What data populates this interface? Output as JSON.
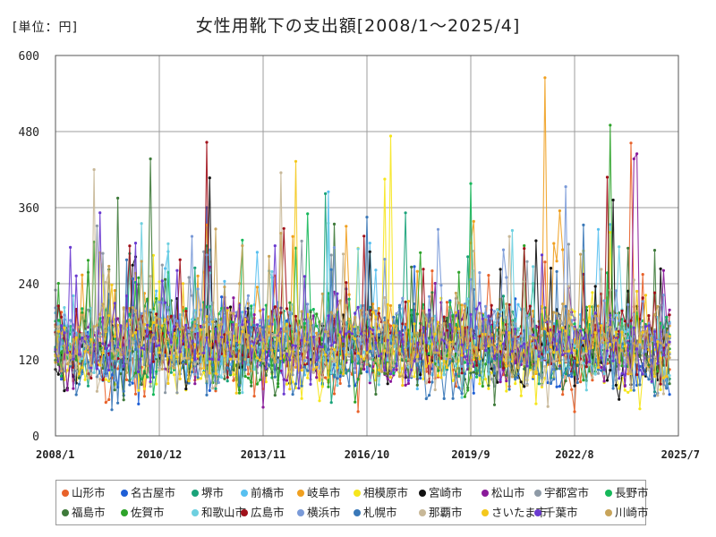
{
  "header": {
    "unit": "[単位：円]",
    "title": "女性用靴下の支出額[2008/1～2025/4]"
  },
  "chart_data": {
    "type": "line",
    "title": "女性用靴下の支出額[2008/1～2025/4]",
    "unit": "[単位：円]",
    "ylim": [
      0,
      600
    ],
    "yticks": [
      0,
      120,
      240,
      360,
      480,
      600
    ],
    "xrange": [
      "2008/1",
      "2025/7"
    ],
    "xticks": [
      "2008/1",
      "2010/12",
      "2013/11",
      "2016/10",
      "2019/9",
      "2022/8",
      "2025/7"
    ],
    "grid": true,
    "legend_position": "bottom",
    "series": [
      {
        "name": "山形市",
        "color": "#e8622a",
        "spikes": [
          [
            "2024/3",
            462
          ]
        ]
      },
      {
        "name": "名古屋市",
        "color": "#1f5fd6",
        "spikes": [
          [
            "2012/4",
            360
          ]
        ]
      },
      {
        "name": "堺市",
        "color": "#1aa37a",
        "spikes": [
          [
            "2015/8",
            382
          ]
        ]
      },
      {
        "name": "前橋市",
        "color": "#58c0f0",
        "spikes": [
          [
            "2015/9",
            385
          ]
        ]
      },
      {
        "name": "岐阜市",
        "color": "#f0a020",
        "spikes": [
          [
            "2021/10",
            565
          ],
          [
            "2022/3",
            355
          ]
        ]
      },
      {
        "name": "相模原市",
        "color": "#f6e61c",
        "spikes": [
          [
            "2017/6",
            473
          ],
          [
            "2017/4",
            405
          ]
        ]
      },
      {
        "name": "宮崎市",
        "color": "#111111",
        "spikes": [
          [
            "2012/5",
            407
          ],
          [
            "2023/9",
            372
          ]
        ]
      },
      {
        "name": "松山市",
        "color": "#8a1a9a",
        "spikes": [
          [
            "2024/5",
            445
          ],
          [
            "2024/4",
            437
          ]
        ]
      },
      {
        "name": "宇都宮市",
        "color": "#8e9aa6",
        "spikes": [
          [
            "2021/4",
            275
          ]
        ]
      },
      {
        "name": "長野市",
        "color": "#16b85a",
        "spikes": [
          [
            "2019/9",
            398
          ]
        ]
      },
      {
        "name": "福島市",
        "color": "#3e7a3a",
        "spikes": [
          [
            "2010/9",
            437
          ],
          [
            "2009/10",
            375
          ]
        ]
      },
      {
        "name": "佐賀市",
        "color": "#2ea32a",
        "spikes": [
          [
            "2023/8",
            490
          ]
        ]
      },
      {
        "name": "和歌山市",
        "color": "#6ed0e0",
        "spikes": [
          [
            "2010/6",
            335
          ]
        ]
      },
      {
        "name": "広島市",
        "color": "#a0101a",
        "spikes": [
          [
            "2012/4",
            463
          ],
          [
            "2023/7",
            408
          ]
        ]
      },
      {
        "name": "横浜市",
        "color": "#7a9ad8",
        "spikes": [
          [
            "2022/5",
            393
          ]
        ]
      },
      {
        "name": "札幌市",
        "color": "#3a78b8",
        "spikes": [
          [
            "2016/10",
            345
          ]
        ]
      },
      {
        "name": "那覇市",
        "color": "#c8b898",
        "spikes": [
          [
            "2009/2",
            420
          ],
          [
            "2014/5",
            415
          ]
        ]
      },
      {
        "name": "さいたま市",
        "color": "#f4c81c",
        "spikes": [
          [
            "2014/10",
            433
          ]
        ]
      },
      {
        "name": "千葉市",
        "color": "#6a3ad0",
        "spikes": [
          [
            "2009/4",
            352
          ]
        ]
      },
      {
        "name": "川崎市",
        "color": "#c8a45a",
        "spikes": [
          [
            "2013/4",
            300
          ]
        ]
      }
    ]
  }
}
